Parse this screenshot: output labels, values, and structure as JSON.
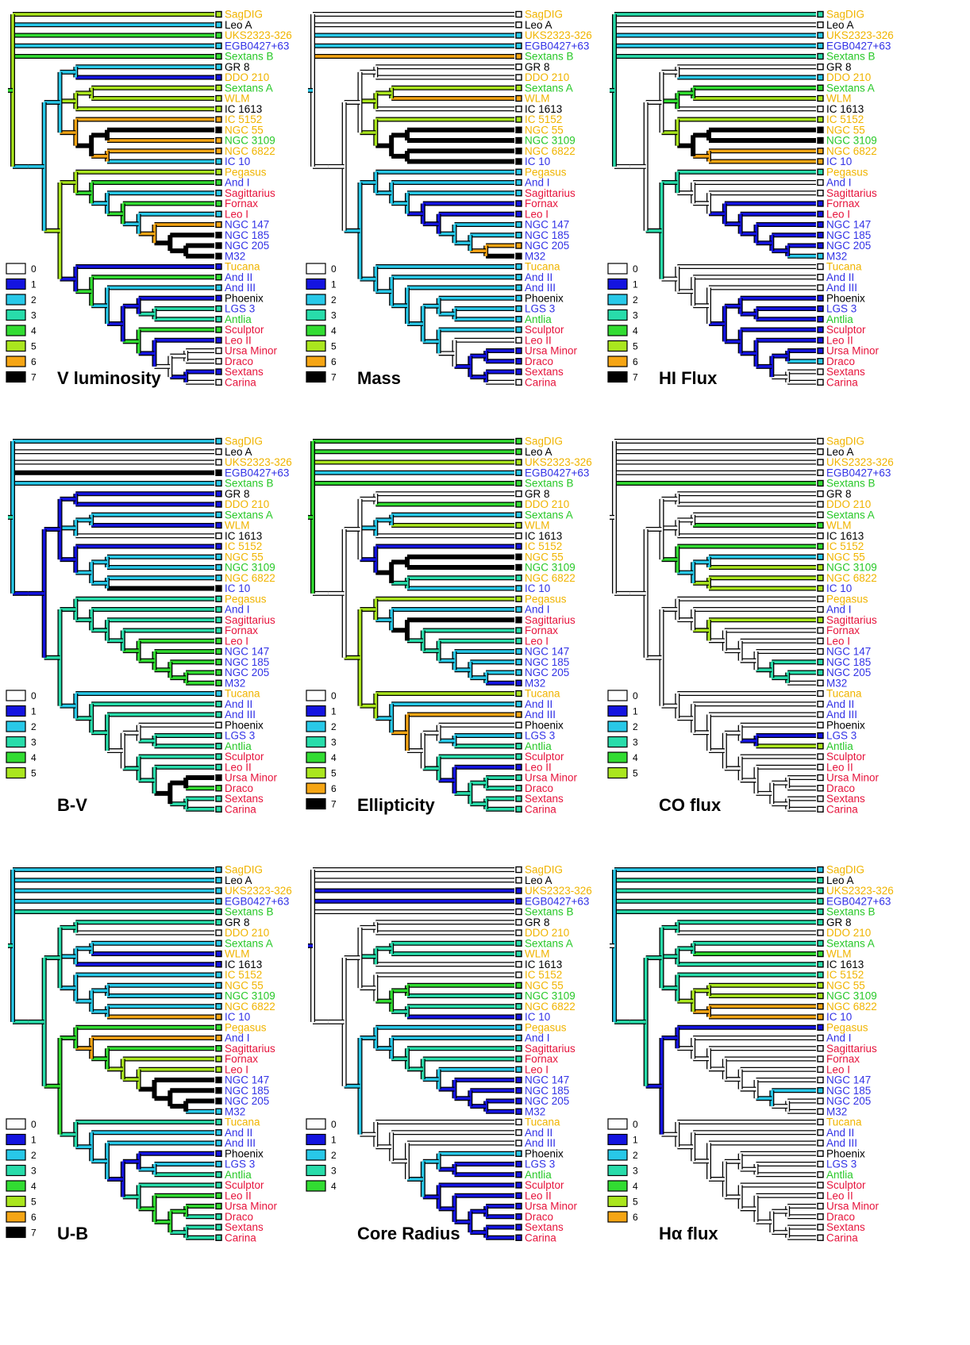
{
  "colors": {
    "0": "#ffffff",
    "1": "#1414e0",
    "2": "#28c8e8",
    "3": "#28dcaa",
    "4": "#32dc32",
    "5": "#aae61e",
    "6": "#f5a514",
    "7": "#000000",
    "lbl_yellow": "#f0b400",
    "lbl_black": "#000000",
    "lbl_green": "#28c828",
    "lbl_blue": "#3232e6",
    "lbl_red": "#e6143c"
  },
  "taxa": [
    {
      "name": "SagDIG",
      "color": "lbl_yellow"
    },
    {
      "name": "Leo A",
      "color": "lbl_black"
    },
    {
      "name": "UKS2323-326",
      "color": "lbl_yellow"
    },
    {
      "name": "EGB0427+63",
      "color": "lbl_blue"
    },
    {
      "name": "Sextans B",
      "color": "lbl_green"
    },
    {
      "name": "GR 8",
      "color": "lbl_black"
    },
    {
      "name": "DDO 210",
      "color": "lbl_yellow"
    },
    {
      "name": "Sextans A",
      "color": "lbl_green"
    },
    {
      "name": "WLM",
      "color": "lbl_yellow"
    },
    {
      "name": "IC 1613",
      "color": "lbl_black"
    },
    {
      "name": "IC 5152",
      "color": "lbl_yellow"
    },
    {
      "name": "NGC 55",
      "color": "lbl_yellow"
    },
    {
      "name": "NGC 3109",
      "color": "lbl_green"
    },
    {
      "name": "NGC 6822",
      "color": "lbl_yellow"
    },
    {
      "name": "IC 10",
      "color": "lbl_blue"
    },
    {
      "name": "Pegasus",
      "color": "lbl_yellow"
    },
    {
      "name": "And I",
      "color": "lbl_blue"
    },
    {
      "name": "Sagittarius",
      "color": "lbl_red"
    },
    {
      "name": "Fornax",
      "color": "lbl_red"
    },
    {
      "name": "Leo I",
      "color": "lbl_red"
    },
    {
      "name": "NGC 147",
      "color": "lbl_blue"
    },
    {
      "name": "NGC 185",
      "color": "lbl_blue"
    },
    {
      "name": "NGC 205",
      "color": "lbl_blue"
    },
    {
      "name": "M32",
      "color": "lbl_blue"
    },
    {
      "name": "Tucana",
      "color": "lbl_yellow"
    },
    {
      "name": "And II",
      "color": "lbl_blue"
    },
    {
      "name": "And III",
      "color": "lbl_blue"
    },
    {
      "name": "Phoenix",
      "color": "lbl_black"
    },
    {
      "name": "LGS 3",
      "color": "lbl_blue"
    },
    {
      "name": "Antlia",
      "color": "lbl_green"
    },
    {
      "name": "Sculptor",
      "color": "lbl_red"
    },
    {
      "name": "Leo II",
      "color": "lbl_red"
    },
    {
      "name": "Ursa Minor",
      "color": "lbl_red"
    },
    {
      "name": "Draco",
      "color": "lbl_red"
    },
    {
      "name": "Sextans",
      "color": "lbl_red"
    },
    {
      "name": "Carina",
      "color": "lbl_red"
    }
  ],
  "panels": [
    {
      "title": "V luminosity",
      "title_html": "",
      "levels": [
        "0",
        "1",
        "2",
        "3",
        "4",
        "5",
        "6",
        "7"
      ],
      "base": "4",
      "accents": {
        "0": "5",
        "1": "2",
        "3": "2",
        "5": "2",
        "6": "1",
        "7": "5",
        "8": "5",
        "9": "5",
        "10": "6",
        "11": "7",
        "12": "6",
        "13": "6",
        "14": "2",
        "15": "5",
        "17": "2",
        "19": "2",
        "20": "6",
        "21": "7",
        "22": "7",
        "23": "7",
        "24": "1",
        "26": "2",
        "27": "1",
        "28": "3",
        "29": "3",
        "31": "1",
        "32": "0",
        "33": "0",
        "34": "1",
        "35": "0"
      }
    },
    {
      "title": "Mass",
      "title_html": "",
      "levels": [
        "0",
        "1",
        "2",
        "3",
        "4",
        "5",
        "6",
        "7"
      ],
      "base": "2",
      "accents": {
        "0": "0",
        "1": "0",
        "2": "2",
        "3": "2",
        "4": "6",
        "5": "0",
        "6": "0",
        "7": "5",
        "8": "6",
        "9": "0",
        "10": "5",
        "11": "7",
        "12": "7",
        "13": "7",
        "14": "7",
        "15": "2",
        "16": "2",
        "18": "1",
        "19": "1",
        "20": "2",
        "21": "2",
        "22": "6",
        "23": "7",
        "26": "2",
        "28": "2",
        "29": "2",
        "31": "0",
        "32": "1",
        "33": "1",
        "34": "1",
        "35": "0"
      }
    },
    {
      "title": "HI Flux",
      "title_html": "",
      "levels": [
        "0",
        "1",
        "2",
        "3",
        "4",
        "5",
        "6",
        "7"
      ],
      "base": "3",
      "accents": {
        "1": "0",
        "2": "2",
        "3": "2",
        "5": "0",
        "6": "2",
        "7": "4",
        "8": "5",
        "9": "0",
        "10": "5",
        "11": "7",
        "12": "7",
        "13": "6",
        "14": "6",
        "15": "3",
        "16": "0",
        "17": "0",
        "18": "1",
        "19": "1",
        "20": "1",
        "21": "1",
        "22": "1",
        "23": "2",
        "24": "0",
        "25": "0",
        "26": "0",
        "27": "1",
        "28": "1",
        "29": "1",
        "30": "1",
        "31": "1",
        "32": "1",
        "33": "2",
        "34": "0",
        "35": "0"
      }
    },
    {
      "title": "B-V",
      "title_html": "",
      "levels": [
        "0",
        "1",
        "2",
        "3",
        "4",
        "5"
      ],
      "base": "3",
      "accents": {
        "0": "2",
        "1": "0",
        "2": "0",
        "3": "7",
        "4": "2",
        "5": "1",
        "6": "1",
        "7": "2",
        "8": "1",
        "9": "0",
        "10": "1",
        "11": "2",
        "12": "2",
        "13": "2",
        "14": "7",
        "15": "3",
        "16": "3",
        "19": "4",
        "20": "4",
        "21": "4",
        "22": "4",
        "23": "4",
        "24": "2",
        "27": "0",
        "31": "3",
        "32": "7",
        "33": "4",
        "34": "3"
      }
    },
    {
      "title": "Ellipticity",
      "title_html": "",
      "levels": [
        "0",
        "1",
        "2",
        "3",
        "4",
        "5",
        "6",
        "7"
      ],
      "base": "4",
      "accents": {
        "2": "5",
        "3": "2",
        "5": "0",
        "7": "2",
        "8": "5",
        "9": "0",
        "10": "1",
        "11": "7",
        "12": "7",
        "13": "3",
        "14": "2",
        "15": "5",
        "16": "2",
        "17": "7",
        "18": "3",
        "19": "3",
        "20": "2",
        "21": "2",
        "22": "2",
        "23": "1",
        "24": "5",
        "25": "2",
        "26": "6",
        "27": "0",
        "28": "2",
        "29": "3",
        "30": "3",
        "31": "1",
        "32": "3",
        "33": "3",
        "34": "3",
        "35": "3"
      }
    },
    {
      "title": "CO flux",
      "title_html": "",
      "levels": [
        "0",
        "1",
        "2",
        "3",
        "4",
        "5"
      ],
      "base": "0",
      "accents": {
        "4": "4",
        "8": "4",
        "10": "4",
        "11": "2",
        "12": "5",
        "13": "5",
        "14": "5",
        "15": "0",
        "17": "5",
        "21": "3",
        "22": "3",
        "28": "1",
        "29": "5"
      }
    },
    {
      "title": "U-B",
      "title_html": "",
      "levels": [
        "0",
        "1",
        "2",
        "3",
        "4",
        "5",
        "6",
        "7"
      ],
      "base": "3",
      "accents": {
        "0": "2",
        "1": "2",
        "2": "2",
        "3": "2",
        "4": "3",
        "6": "0",
        "7": "2",
        "8": "1",
        "9": "1",
        "10": "2",
        "11": "2",
        "12": "2",
        "13": "2",
        "14": "6",
        "15": "4",
        "16": "6",
        "17": "4",
        "18": "5",
        "19": "5",
        "20": "7",
        "21": "7",
        "22": "7",
        "23": "2",
        "24": "3",
        "25": "2",
        "26": "2",
        "27": "1",
        "28": "2",
        "31": "4",
        "32": "4",
        "33": "3"
      }
    },
    {
      "title": "Core Radius",
      "title_html": "",
      "levels": [
        "0",
        "1",
        "2",
        "3",
        "4"
      ],
      "base": "1",
      "accents": {
        "0": "0",
        "1": "0",
        "2": "1",
        "3": "1",
        "4": "0",
        "5": "0",
        "6": "0",
        "7": "3",
        "8": "3",
        "9": "0",
        "10": "0",
        "11": "4",
        "12": "3",
        "13": "3",
        "14": "1",
        "15": "2",
        "16": "2",
        "17": "3",
        "18": "3",
        "19": "2",
        "22": "1",
        "24": "0",
        "25": "0",
        "26": "0",
        "27": "2",
        "28": "1",
        "30": "1"
      }
    },
    {
      "title": "Hα flux",
      "title_html": "Hα flux",
      "levels": [
        "0",
        "1",
        "2",
        "3",
        "4",
        "5",
        "6"
      ],
      "base": "0",
      "accents": {
        "0": "2",
        "1": "3",
        "2": "3",
        "3": "3",
        "4": "3",
        "5": "3",
        "7": "3",
        "8": "4",
        "9": "3",
        "10": "3",
        "11": "5",
        "12": "5",
        "13": "6",
        "14": "6",
        "15": "1",
        "21": "2"
      }
    }
  ]
}
